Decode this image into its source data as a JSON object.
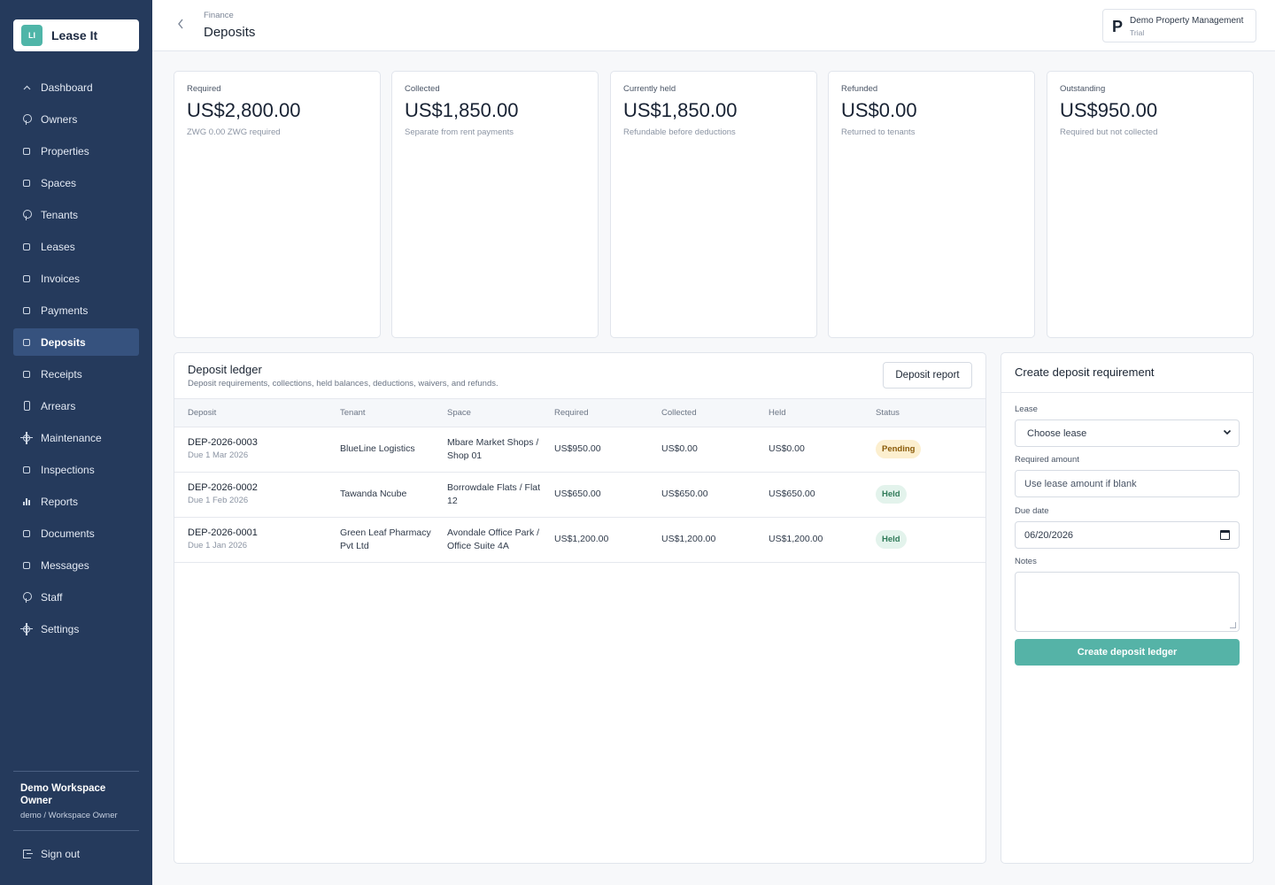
{
  "brand": {
    "logo_text": "LI",
    "name": "Lease It"
  },
  "sidebar": {
    "items": [
      {
        "label": "Dashboard",
        "icon": "caret-up-icon",
        "active": false
      },
      {
        "label": "Owners",
        "icon": "person-icon",
        "active": false
      },
      {
        "label": "Properties",
        "icon": "box-icon",
        "active": false
      },
      {
        "label": "Spaces",
        "icon": "box-icon",
        "active": false
      },
      {
        "label": "Tenants",
        "icon": "person-icon",
        "active": false
      },
      {
        "label": "Leases",
        "icon": "box-icon",
        "active": false
      },
      {
        "label": "Invoices",
        "icon": "box-icon",
        "active": false
      },
      {
        "label": "Payments",
        "icon": "box-icon",
        "active": false
      },
      {
        "label": "Deposits",
        "icon": "box-icon",
        "active": true
      },
      {
        "label": "Receipts",
        "icon": "box-icon",
        "active": false
      },
      {
        "label": "Arrears",
        "icon": "phone-icon",
        "active": false
      },
      {
        "label": "Maintenance",
        "icon": "gear-icon",
        "active": false
      },
      {
        "label": "Inspections",
        "icon": "box-icon",
        "active": false
      },
      {
        "label": "Reports",
        "icon": "bar-chart-icon",
        "active": false
      },
      {
        "label": "Documents",
        "icon": "box-icon",
        "active": false
      },
      {
        "label": "Messages",
        "icon": "box-icon",
        "active": false
      },
      {
        "label": "Staff",
        "icon": "person-icon",
        "active": false
      },
      {
        "label": "Settings",
        "icon": "gear-icon",
        "active": false
      }
    ],
    "user": {
      "name": "Demo Workspace Owner",
      "role": "demo / Workspace Owner"
    },
    "sign_out": "Sign out"
  },
  "header": {
    "breadcrumb": "Finance",
    "title": "Deposits",
    "org": {
      "letter": "P",
      "name": "Demo Property Management",
      "plan": "Trial"
    }
  },
  "stats": [
    {
      "label": "Required",
      "value": "US$2,800.00",
      "sub": "ZWG 0.00 ZWG required"
    },
    {
      "label": "Collected",
      "value": "US$1,850.00",
      "sub": "Separate from rent payments"
    },
    {
      "label": "Currently held",
      "value": "US$1,850.00",
      "sub": "Refundable before deductions"
    },
    {
      "label": "Refunded",
      "value": "US$0.00",
      "sub": "Returned to tenants"
    },
    {
      "label": "Outstanding",
      "value": "US$950.00",
      "sub": "Required but not collected"
    }
  ],
  "ledger": {
    "title": "Deposit ledger",
    "subtitle": "Deposit requirements, collections, held balances, deductions, waivers, and refunds.",
    "report_button": "Deposit report",
    "columns": [
      "Deposit",
      "Tenant",
      "Space",
      "Required",
      "Collected",
      "Held",
      "Status"
    ],
    "rows": [
      {
        "id": "DEP-2026-0003",
        "due": "Due 1 Mar 2026",
        "tenant": [
          "BlueLine Logistics"
        ],
        "space": [
          "Mbare Market Shops /",
          "Shop 01"
        ],
        "required": "US$950.00",
        "collected": "US$0.00",
        "held": "US$0.00",
        "status": "Pending"
      },
      {
        "id": "DEP-2026-0002",
        "due": "Due 1 Feb 2026",
        "tenant": [
          "Tawanda Ncube"
        ],
        "space": [
          "Borrowdale Flats / Flat",
          "12"
        ],
        "required": "US$650.00",
        "collected": "US$650.00",
        "held": "US$650.00",
        "status": "Held"
      },
      {
        "id": "DEP-2026-0001",
        "due": "Due 1 Jan 2026",
        "tenant": [
          "Green Leaf Pharmacy",
          "Pvt Ltd"
        ],
        "space": [
          "Avondale Office Park /",
          "Office Suite 4A"
        ],
        "required": "US$1,200.00",
        "collected": "US$1,200.00",
        "held": "US$1,200.00",
        "status": "Held"
      }
    ],
    "status_colors": {
      "Pending": "#fcefcf",
      "Held": "#e3f3ec"
    }
  },
  "create": {
    "title": "Create deposit requirement",
    "lease_label": "Lease",
    "lease_value": "Choose lease",
    "amount_label": "Required amount",
    "amount_placeholder": "Use lease amount if blank",
    "due_label": "Due date",
    "due_value": "06/20/2026",
    "notes_label": "Notes",
    "notes_value": "",
    "submit": "Create deposit ledger"
  },
  "colors": {
    "sidebar": "#253a5c",
    "accent": "#55b3a7",
    "active_nav": "#36527e"
  }
}
